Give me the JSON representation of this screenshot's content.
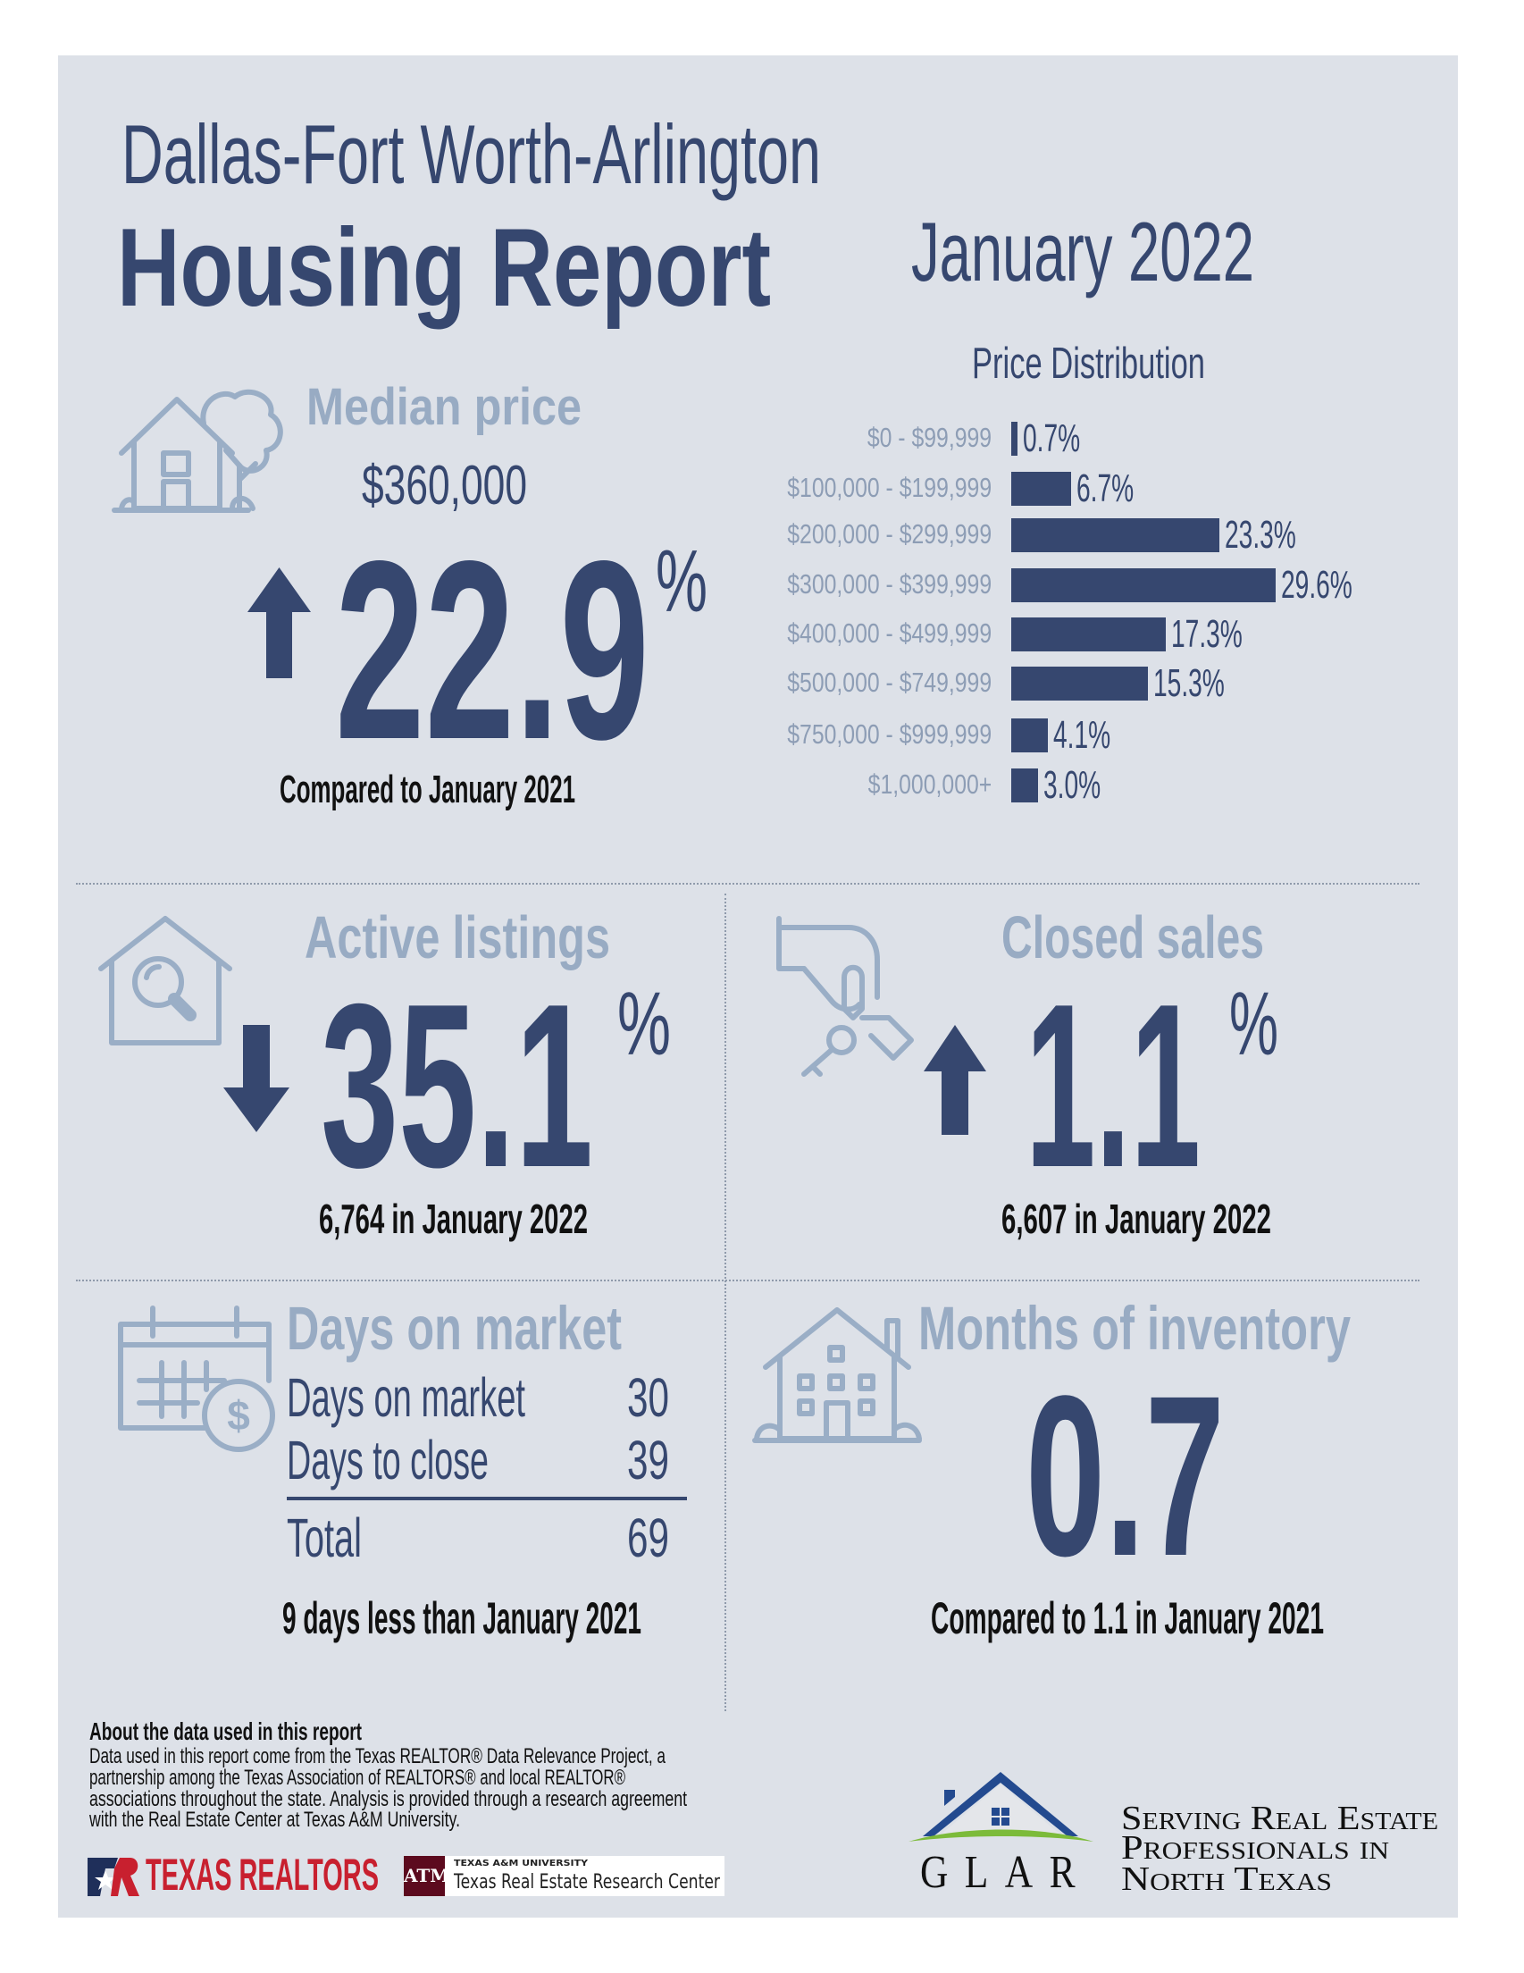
{
  "header": {
    "region": "Dallas-Fort Worth-Arlington",
    "title": "Housing Report",
    "period": "January 2022"
  },
  "median_price": {
    "label": "Median price",
    "value": "$360,000",
    "direction": "up",
    "change": "22.9",
    "unit": "%",
    "comparison": "Compared to January 2021"
  },
  "active_listings": {
    "label": "Active listings",
    "direction": "down",
    "change": "35.1",
    "unit": "%",
    "detail": "6,764 in January 2022"
  },
  "closed_sales": {
    "label": "Closed sales",
    "direction": "up",
    "change": "1.1",
    "unit": "%",
    "detail": "6,607 in January 2022"
  },
  "days_on_market": {
    "label": "Days on market",
    "rows": [
      {
        "label": "Days on market",
        "value": "30"
      },
      {
        "label": "Days to close",
        "value": "39"
      }
    ],
    "total": {
      "label": "Total",
      "value": "69"
    },
    "comparison": "9 days less than January 2021"
  },
  "months_inventory": {
    "label": "Months of inventory",
    "value": "0.7",
    "comparison": "Compared to 1.1 in January 2021"
  },
  "footer": {
    "about_title": "About the data used in this report",
    "about_lines": [
      "Data used in this report come from the Texas REALTOR® Data Relevance Project, a",
      "partnership among the Texas Association of REALTORS® and local REALTOR®",
      "associations throughout the state. Analysis is provided through a research agreement",
      "with the Real Estate Center at Texas A&M University."
    ],
    "texas_realtors": "TEXAS REALTORS",
    "tamu_small": "TEXAS A&M UNIVERSITY",
    "tamu_name": "Texas Real Estate Research Center",
    "glar": "GLAR",
    "tagline": [
      "Serving Real Estate",
      "Professionals in",
      "North Texas"
    ]
  },
  "colors": {
    "navy": "#36476f",
    "light_heading": "#98abc3",
    "panel": "#dde1e8",
    "texas_red": "#c8202f",
    "tamu_maroon": "#5c0a1e",
    "glar_blue": "#234a8f",
    "glar_green": "#7cbb3a"
  },
  "chart_data": {
    "type": "bar",
    "orientation": "horizontal",
    "title": "Price Distribution",
    "categories": [
      "$0 - $99,999",
      "$100,000 - $199,999",
      "$200,000 - $299,999",
      "$300,000 - $399,999",
      "$400,000 - $499,999",
      "$500,000 - $749,999",
      "$750,000 - $999,999",
      "$1,000,000+"
    ],
    "values": [
      0.7,
      6.7,
      23.3,
      29.6,
      17.3,
      15.3,
      4.1,
      3.0
    ],
    "unit": "%",
    "xlabel": "",
    "ylabel": ""
  }
}
